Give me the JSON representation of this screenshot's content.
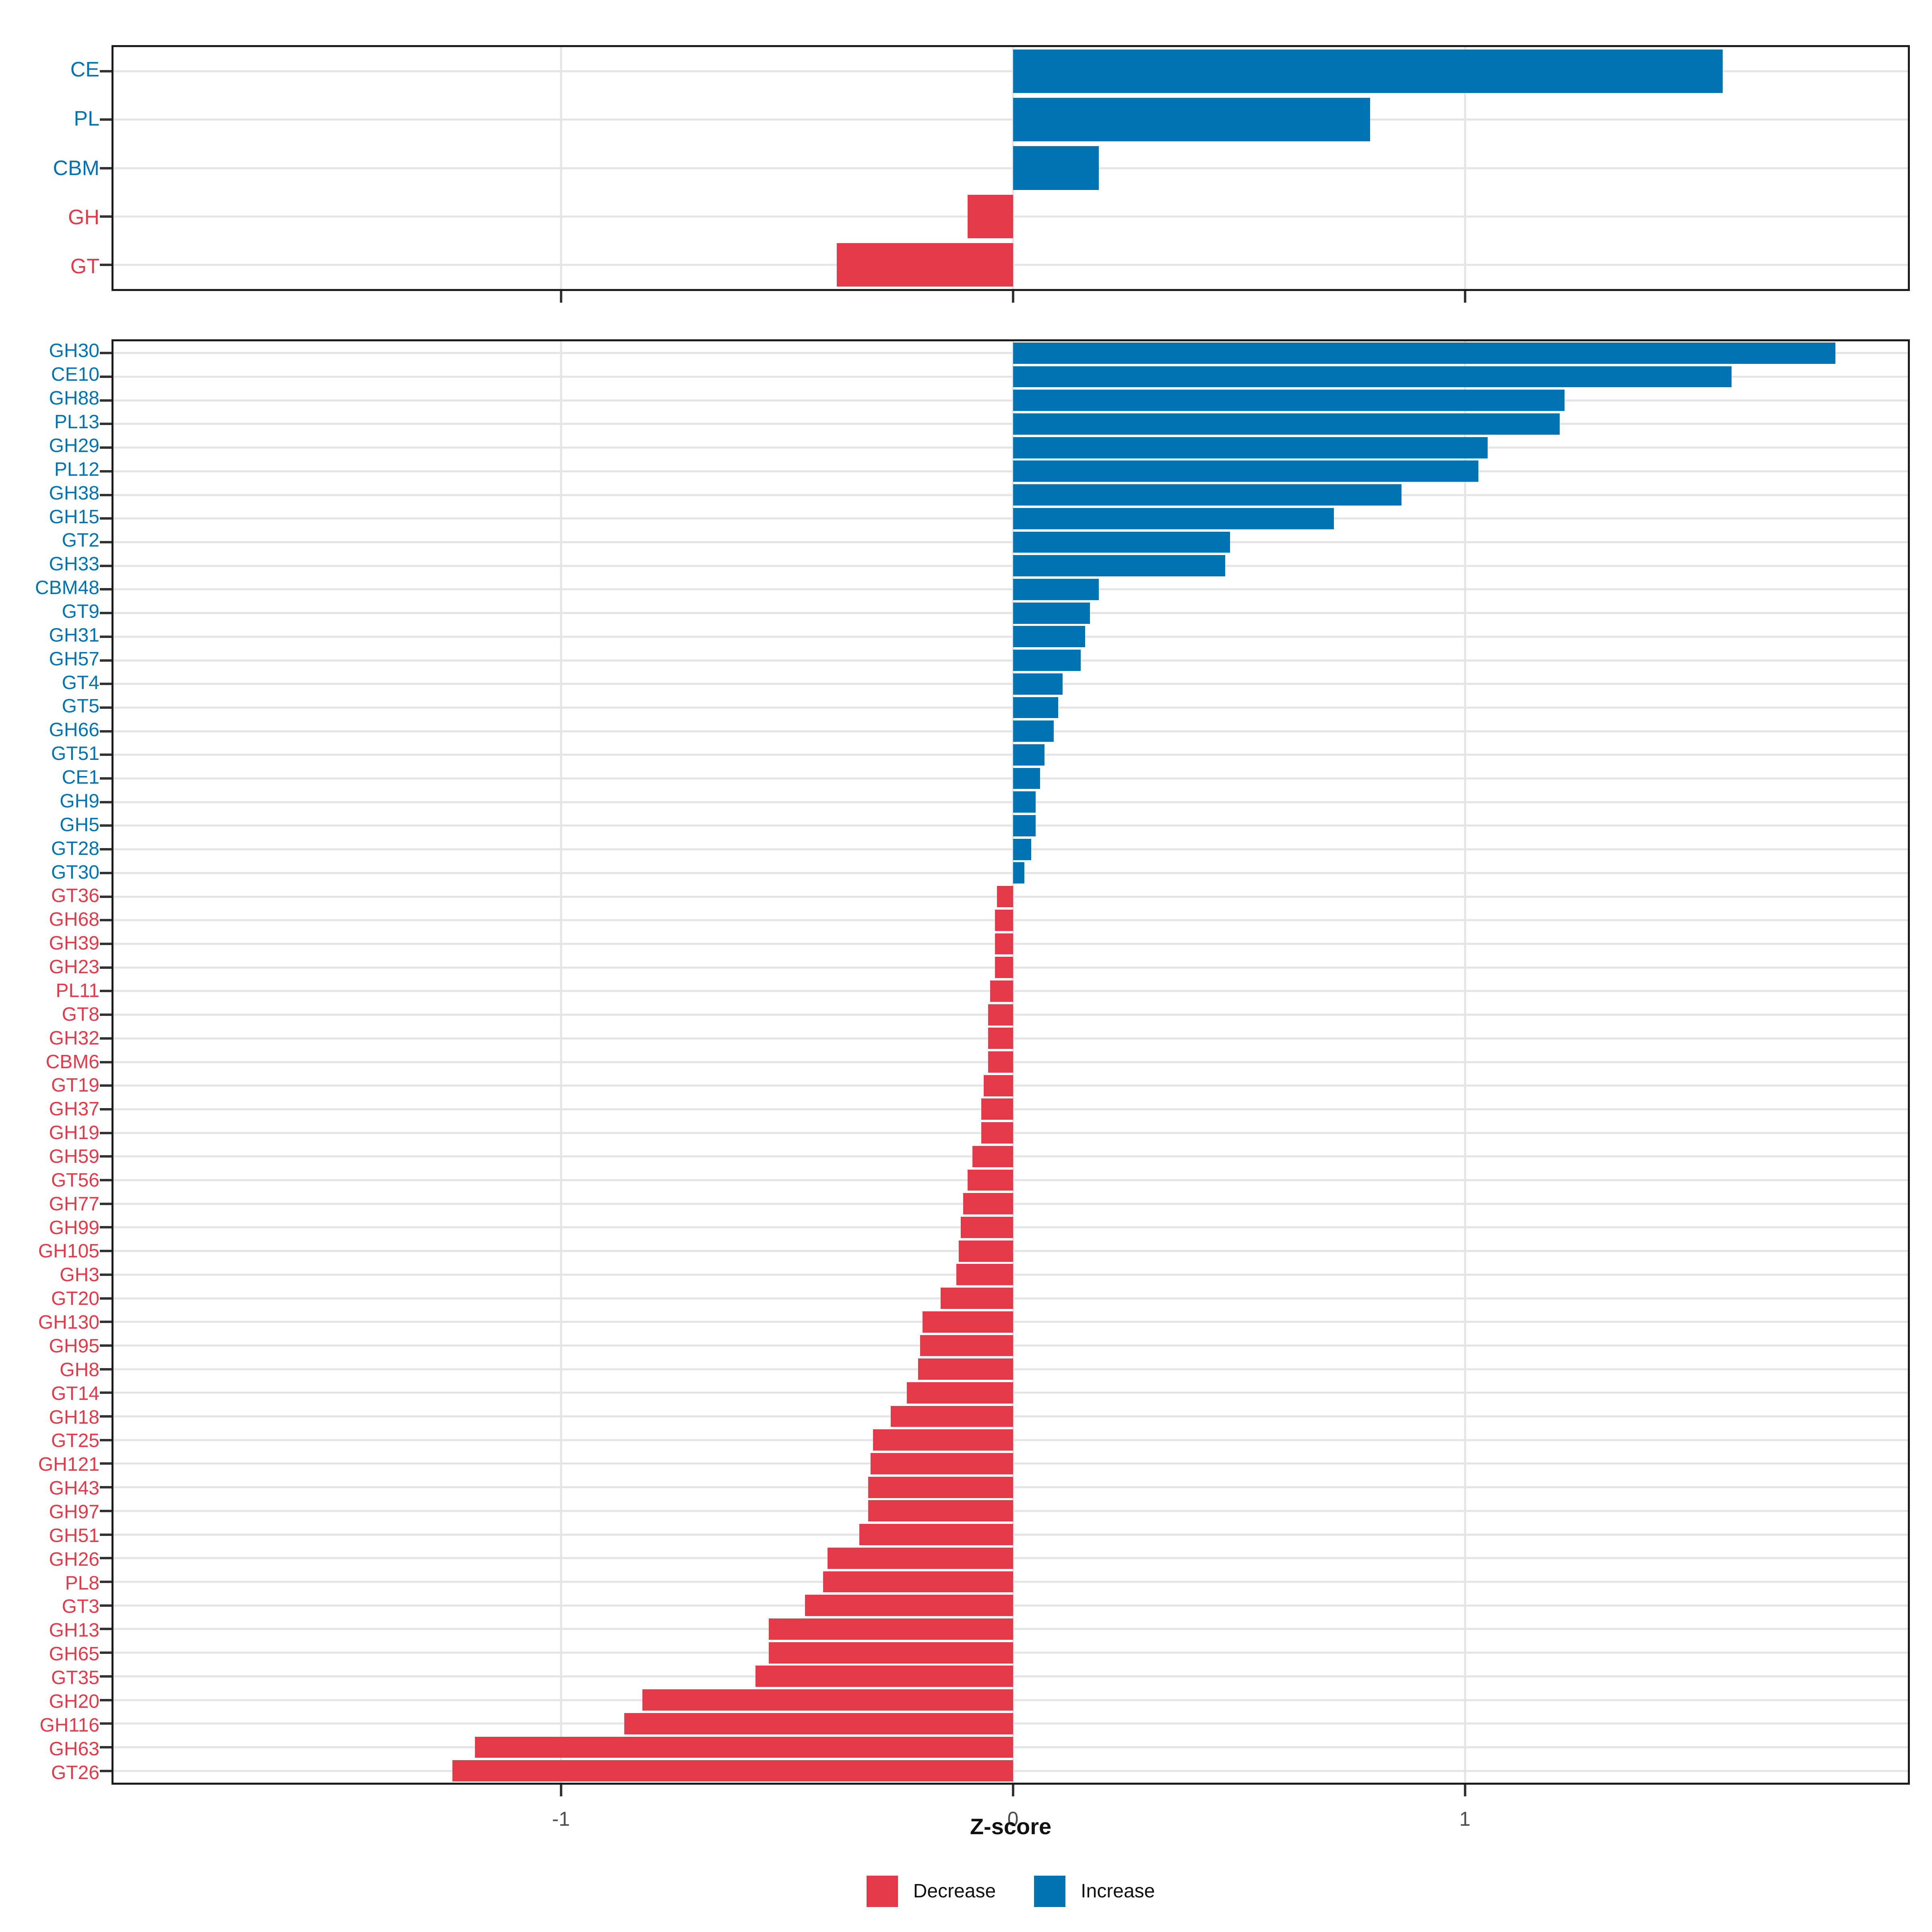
{
  "chart_data": {
    "type": "bar",
    "orientation": "horizontal",
    "xlabel": "Z-score",
    "x_ticks": [
      -1,
      0,
      1
    ],
    "x_tick_labels": [
      "-1",
      "0",
      "1"
    ],
    "xlim": [
      -1.99,
      1.98
    ],
    "grid": true,
    "legend_position": "bottom",
    "colors": {
      "increase": "#0074b3",
      "decrease": "#e33948"
    },
    "legend": [
      {
        "label": "Decrease",
        "color": "#e33948"
      },
      {
        "label": "Increase",
        "color": "#0074b3"
      }
    ],
    "top_panel": {
      "categories": [
        "CE",
        "PL",
        "CBM",
        "GH",
        "GT"
      ],
      "values": [
        1.57,
        0.79,
        0.19,
        -0.1,
        -0.39
      ]
    },
    "bottom_panel": {
      "categories": [
        "GH30",
        "CE10",
        "GH88",
        "PL13",
        "GH29",
        "PL12",
        "GH38",
        "GH15",
        "GT2",
        "GH33",
        "CBM48",
        "GT9",
        "GH31",
        "GH57",
        "GT4",
        "GT5",
        "GH66",
        "GT51",
        "CE1",
        "GH9",
        "GH5",
        "GT28",
        "GT30",
        "GT36",
        "GH68",
        "GH39",
        "GH23",
        "PL11",
        "GT8",
        "GH32",
        "CBM6",
        "GT19",
        "GH37",
        "GH19",
        "GH59",
        "GT56",
        "GH77",
        "GH99",
        "GH105",
        "GH3",
        "GT20",
        "GH130",
        "GH95",
        "GH8",
        "GT14",
        "GH18",
        "GT25",
        "GH121",
        "GH43",
        "GH97",
        "GH51",
        "GH26",
        "PL8",
        "GT3",
        "GH13",
        "GH65",
        "GT35",
        "GH20",
        "GH116",
        "GH63",
        "GT26"
      ],
      "values": [
        1.82,
        1.59,
        1.22,
        1.21,
        1.05,
        1.03,
        0.86,
        0.71,
        0.48,
        0.47,
        0.19,
        0.17,
        0.16,
        0.15,
        0.11,
        0.1,
        0.09,
        0.07,
        0.06,
        0.05,
        0.05,
        0.04,
        0.025,
        -0.035,
        -0.04,
        -0.04,
        -0.04,
        -0.05,
        -0.055,
        -0.055,
        -0.055,
        -0.065,
        -0.07,
        -0.07,
        -0.09,
        -0.1,
        -0.11,
        -0.115,
        -0.12,
        -0.125,
        -0.16,
        -0.2,
        -0.205,
        -0.21,
        -0.235,
        -0.27,
        -0.31,
        -0.315,
        -0.32,
        -0.32,
        -0.34,
        -0.41,
        -0.42,
        -0.46,
        -0.54,
        -0.54,
        -0.57,
        -0.82,
        -0.86,
        -1.19,
        -1.24
      ]
    }
  }
}
